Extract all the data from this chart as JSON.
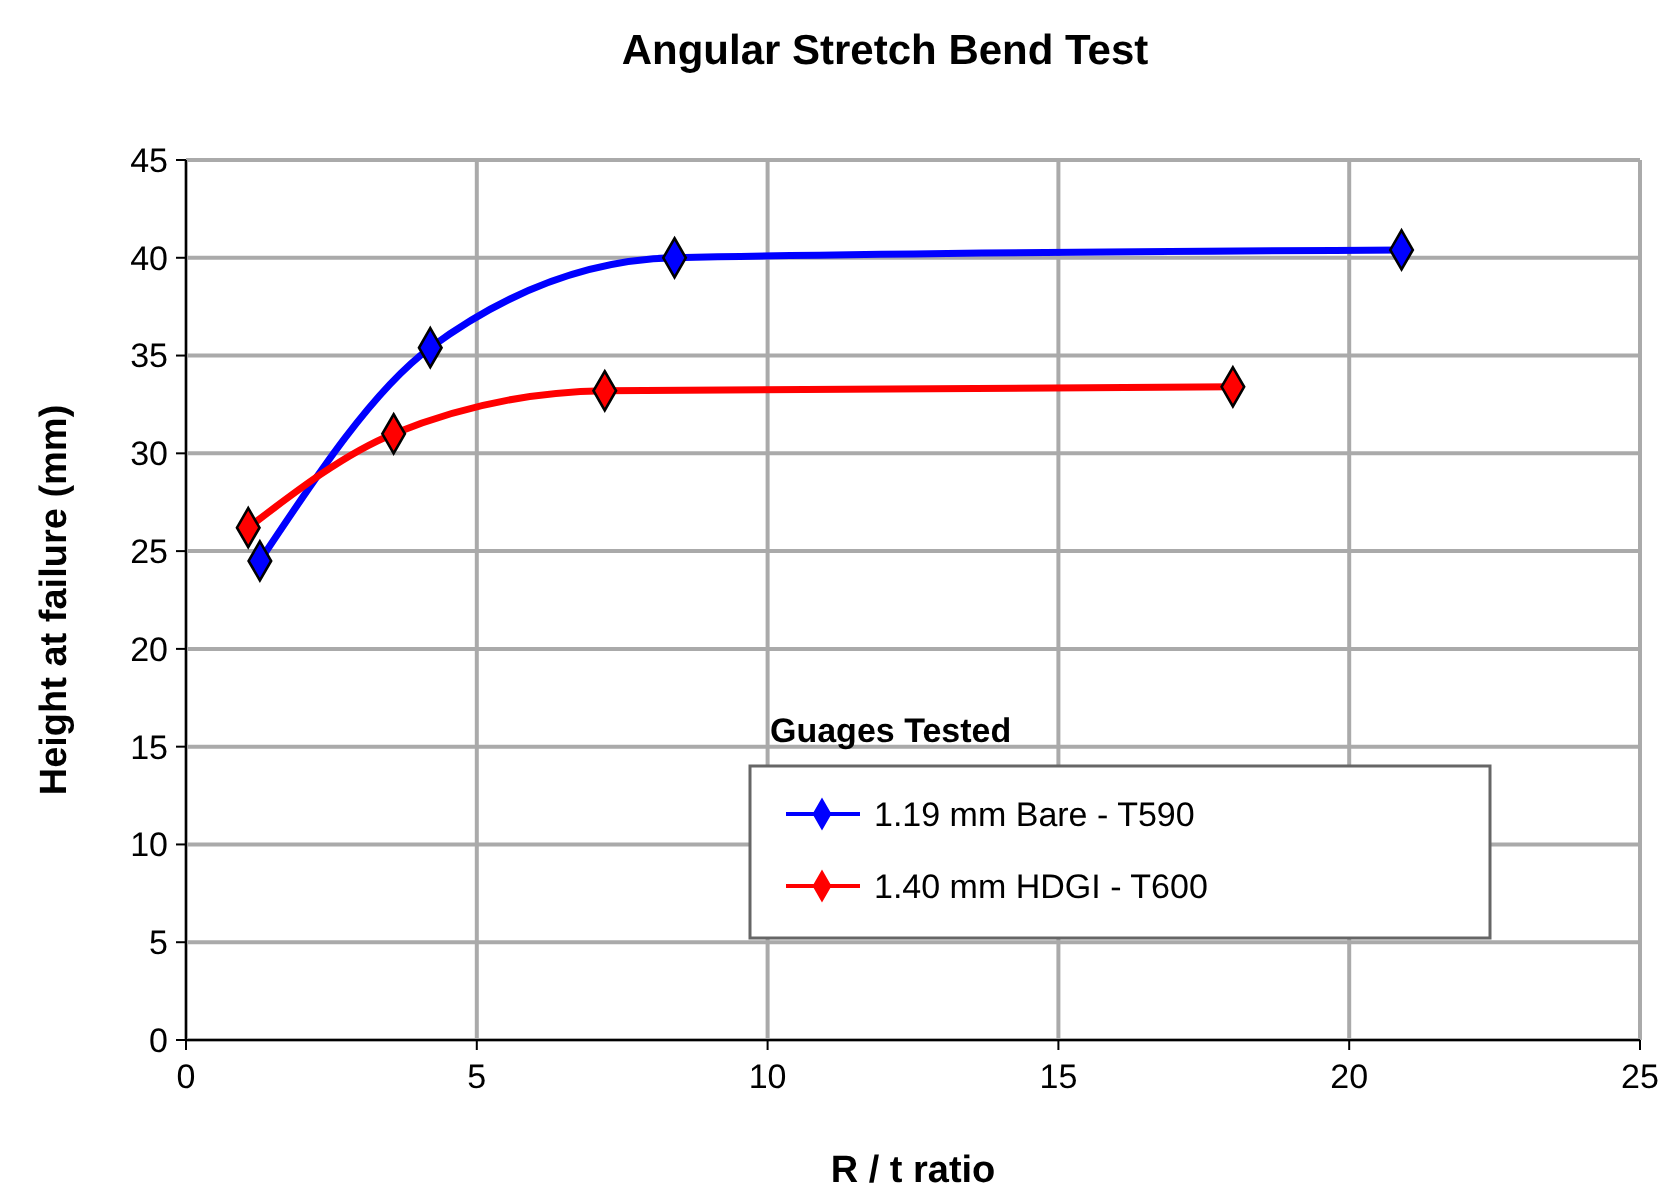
{
  "chart_data": {
    "type": "line",
    "title": "Angular Stretch Bend Test",
    "xlabel": "R / t ratio",
    "ylabel": "Height at failure (mm)",
    "legend_title": "Guages Tested",
    "legend": "bottom right",
    "grid": true,
    "xlim": [
      0,
      25
    ],
    "xticks": [
      0,
      5,
      10,
      15,
      20,
      25
    ],
    "ylim": [
      0,
      45
    ],
    "yticks": [
      0,
      5,
      10,
      15,
      20,
      25,
      30,
      35,
      40,
      45
    ],
    "series": [
      {
        "name": "1.19 mm Bare - T590",
        "color": "#0000ff",
        "marker": "diamond",
        "x": [
          1.27,
          4.2,
          8.4,
          20.9
        ],
        "values": [
          24.5,
          35.4,
          40.0,
          40.4
        ]
      },
      {
        "name": "1.40 mm HDGI - T600",
        "color": "#ff0000",
        "marker": "diamond",
        "x": [
          1.07,
          3.57,
          7.2,
          18.0
        ],
        "values": [
          26.2,
          31.0,
          33.2,
          33.4
        ]
      }
    ]
  }
}
